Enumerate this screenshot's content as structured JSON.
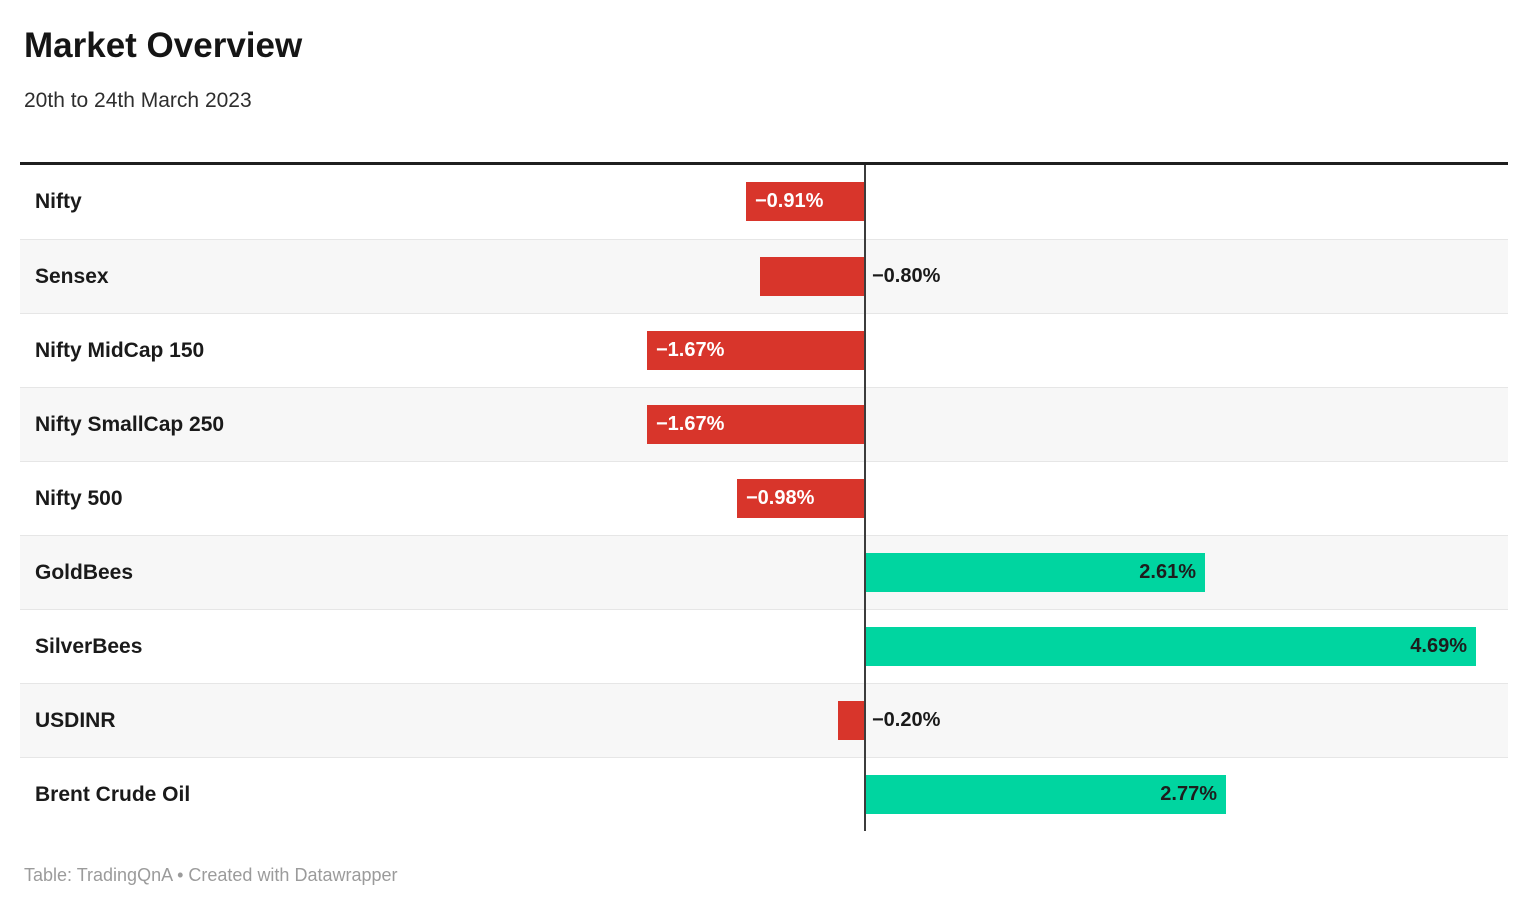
{
  "header": {
    "title": "Market Overview",
    "subtitle": "20th to 24th March 2023"
  },
  "footer": {
    "credit": "Table: TradingQnA • Created with Datawrapper"
  },
  "colors": {
    "negative_bar": "#d8352b",
    "positive_bar": "#00d5a0",
    "label_on_negative": "#ffffff",
    "label_on_positive": "#1d1d1d",
    "label_outside": "#1a1a1a",
    "axis_line": "#3c3c3c",
    "row_alt_background": "#f7f7f7",
    "top_rule": "#1f1f1f"
  },
  "chart_data": {
    "type": "bar",
    "orientation": "horizontal",
    "title": "Market Overview",
    "subtitle": "20th to 24th March 2023",
    "value_unit": "%",
    "baseline": 0,
    "grid": false,
    "legend": false,
    "categories": [
      "Nifty",
      "Sensex",
      "Nifty MidCap 150",
      "Nifty SmallCap 250",
      "Nifty 500",
      "GoldBees",
      "SilverBees",
      "USDINR",
      "Brent Crude Oil"
    ],
    "values": [
      -0.91,
      -0.8,
      -1.67,
      -1.67,
      -0.98,
      2.61,
      4.69,
      -0.2,
      2.77
    ],
    "display_values": [
      "−0.91%",
      "−0.80%",
      "−1.67%",
      "−1.67%",
      "−0.98%",
      "2.61%",
      "4.69%",
      "−0.20%",
      "2.77%"
    ]
  }
}
